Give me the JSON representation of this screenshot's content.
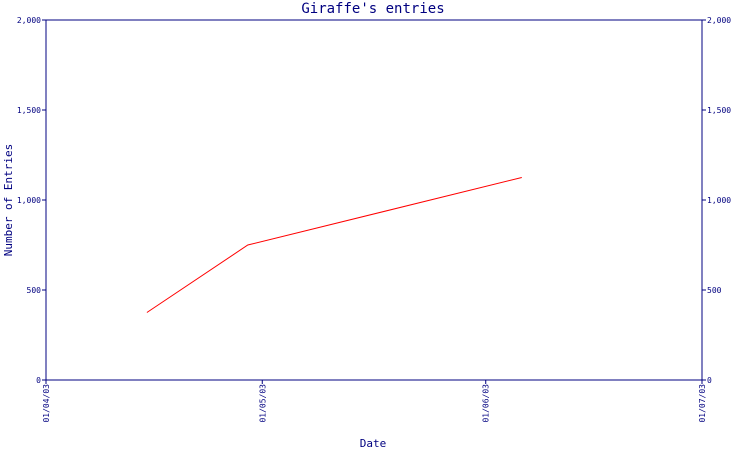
{
  "chart_data": {
    "type": "line",
    "title": "Giraffe's entries",
    "xlabel": "Date",
    "ylabel": "Number of Entries",
    "x_tick_labels": [
      "01/04/03",
      "01/05/03",
      "01/06/03",
      "01/07/03"
    ],
    "x_ticks": [
      "2003-04-01",
      "2003-05-01",
      "2003-06-01",
      "2003-07-01"
    ],
    "xlim": [
      "2003-04-01",
      "2003-07-01"
    ],
    "ylim": [
      0,
      2000
    ],
    "y_ticks": [
      0,
      500,
      1000,
      1500,
      2000
    ],
    "y_tick_labels": [
      "0",
      "500",
      "1,000",
      "1,500",
      "2,000"
    ],
    "y_axis_right": true,
    "grid": false,
    "series": [
      {
        "color": "#ff0000",
        "x": [
          "2003-04-15",
          "2003-04-29",
          "2003-06-06"
        ],
        "y": [
          375,
          750,
          1125
        ]
      }
    ],
    "colors": {
      "axis": "#000080",
      "line": "#ff0000"
    }
  }
}
